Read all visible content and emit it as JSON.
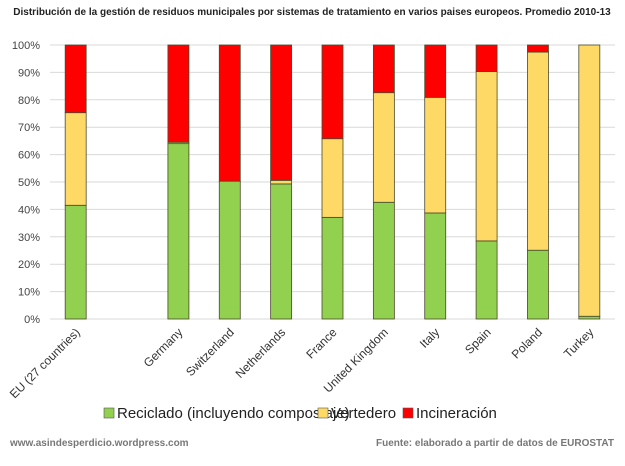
{
  "chart_data": {
    "type": "bar",
    "stacked": true,
    "title": "Distribución de la gestión de residuos municipales por sistemas de tratamiento en varios paises europeos. Promedio 2010-13",
    "xlabel": "",
    "ylabel": "",
    "ylim": [
      0,
      100
    ],
    "y_ticks": [
      "0%",
      "10%",
      "20%",
      "30%",
      "40%",
      "50%",
      "60%",
      "70%",
      "80%",
      "90%",
      "100%"
    ],
    "grid": true,
    "legend_position": "bottom",
    "categories": [
      "EU (27 countries)",
      "",
      "Germany",
      "Switzerland",
      "Netherlands",
      "France",
      "United Kingdom",
      "Italy",
      "Spain",
      "Poland",
      "Turkey"
    ],
    "series": [
      {
        "name": "Reciclado (incluyendo compostaje)",
        "color": "#92d050",
        "values": [
          41.5,
          null,
          64.0,
          50.3,
          49.3,
          37.1,
          42.6,
          38.7,
          28.5,
          25.1,
          1.0
        ]
      },
      {
        "name": "Vertedero",
        "color": "#ffd966",
        "values": [
          33.8,
          null,
          0.5,
          0.0,
          1.3,
          28.7,
          40.0,
          42.2,
          61.8,
          72.3,
          99.0
        ]
      },
      {
        "name": "Incineración",
        "color": "#ff0000",
        "values": [
          24.7,
          null,
          35.5,
          49.7,
          49.4,
          34.2,
          17.4,
          19.1,
          9.7,
          2.6,
          0.0
        ]
      }
    ]
  },
  "footer": {
    "left": "www.asindesperdicio.wordpress.com",
    "right": "Fuente: elaborado a partir de datos de EUROSTAT"
  }
}
